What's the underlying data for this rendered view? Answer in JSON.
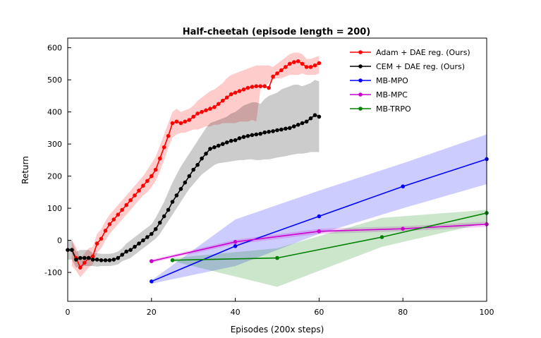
{
  "chart_data": {
    "type": "line",
    "title": "Half-cheetah (episode length = 200)",
    "xlabel": "Episodes (200x steps)",
    "ylabel": "Return",
    "xlim": [
      0,
      100
    ],
    "ylim": [
      -190,
      630
    ],
    "xticks": [
      "0",
      "20",
      "40",
      "60",
      "80",
      "100"
    ],
    "yticks": [
      "-100",
      "0",
      "100",
      "200",
      "300",
      "400",
      "500",
      "600"
    ],
    "grid": false,
    "legend_position": "top-right",
    "series": [
      {
        "name": "Adam + DAE reg. (Ours)",
        "color": "#ff0000",
        "marker": "circle",
        "x": [
          1,
          2,
          3,
          4,
          5,
          6,
          7,
          8,
          9,
          10,
          11,
          12,
          13,
          14,
          15,
          16,
          17,
          18,
          19,
          20,
          21,
          22,
          23,
          24,
          25,
          26,
          27,
          28,
          29,
          30,
          31,
          32,
          33,
          34,
          35,
          36,
          37,
          38,
          39,
          40,
          41,
          42,
          43,
          44,
          45,
          46,
          47,
          48,
          49,
          50,
          51,
          52,
          53,
          54,
          55,
          56,
          57,
          58,
          59,
          60
        ],
        "y": [
          -30,
          -55,
          -85,
          -70,
          -55,
          -50,
          -10,
          5,
          30,
          50,
          65,
          80,
          95,
          110,
          125,
          140,
          155,
          170,
          185,
          200,
          220,
          255,
          290,
          325,
          365,
          370,
          365,
          370,
          375,
          385,
          395,
          400,
          405,
          410,
          415,
          425,
          435,
          445,
          455,
          460,
          465,
          470,
          475,
          478,
          480,
          480,
          480,
          475,
          510,
          520,
          530,
          540,
          550,
          555,
          558,
          550,
          540,
          540,
          545,
          552
        ],
        "band_low": [
          -80,
          -95,
          -115,
          -100,
          -85,
          -75,
          -40,
          -25,
          0,
          20,
          35,
          50,
          65,
          80,
          95,
          110,
          125,
          140,
          150,
          165,
          185,
          215,
          250,
          290,
          320,
          330,
          335,
          335,
          340,
          345,
          345,
          350,
          355,
          355,
          360,
          360,
          365,
          365,
          365,
          365,
          370,
          370,
          370,
          375,
          370,
          470,
          480,
          490,
          500,
          505,
          505,
          510,
          515,
          515,
          515,
          520,
          515,
          515,
          515,
          520
        ],
        "band_high": [
          0,
          -20,
          -60,
          -40,
          -25,
          -20,
          20,
          35,
          60,
          80,
          95,
          110,
          125,
          140,
          155,
          170,
          185,
          200,
          220,
          240,
          260,
          295,
          330,
          365,
          400,
          410,
          400,
          405,
          410,
          420,
          435,
          445,
          455,
          465,
          470,
          480,
          490,
          505,
          515,
          520,
          525,
          530,
          535,
          540,
          545,
          545,
          545,
          545,
          540,
          550,
          560,
          570,
          580,
          585,
          585,
          580,
          565,
          565,
          570,
          575
        ]
      },
      {
        "name": "CEM + DAE reg. (Ours)",
        "color": "#000000",
        "marker": "circle",
        "x": [
          0,
          1,
          2,
          3,
          4,
          5,
          6,
          7,
          8,
          9,
          10,
          11,
          12,
          13,
          14,
          15,
          16,
          17,
          18,
          19,
          20,
          21,
          22,
          23,
          24,
          25,
          26,
          27,
          28,
          29,
          30,
          31,
          32,
          33,
          34,
          35,
          36,
          37,
          38,
          39,
          40,
          41,
          42,
          43,
          44,
          45,
          46,
          47,
          48,
          49,
          50,
          51,
          52,
          53,
          54,
          55,
          56,
          57,
          58,
          59,
          60
        ],
        "y": [
          -30,
          -30,
          -60,
          -55,
          -55,
          -55,
          -60,
          -60,
          -62,
          -62,
          -62,
          -60,
          -55,
          -45,
          -35,
          -30,
          -20,
          -10,
          0,
          10,
          20,
          35,
          55,
          75,
          95,
          120,
          140,
          160,
          180,
          200,
          220,
          235,
          255,
          270,
          285,
          290,
          295,
          300,
          305,
          310,
          312,
          318,
          322,
          325,
          328,
          330,
          332,
          336,
          338,
          340,
          343,
          345,
          348,
          350,
          355,
          360,
          365,
          370,
          380,
          390,
          385
        ],
        "band_low": [
          -60,
          -60,
          -85,
          -80,
          -80,
          -80,
          -80,
          -82,
          -80,
          -80,
          -80,
          -78,
          -75,
          -65,
          -60,
          -55,
          -45,
          -35,
          -25,
          -15,
          -5,
          5,
          20,
          40,
          60,
          80,
          100,
          120,
          140,
          160,
          175,
          190,
          205,
          215,
          225,
          235,
          240,
          242,
          244,
          246,
          248,
          250,
          250,
          252,
          252,
          250,
          250,
          252,
          252,
          255,
          258,
          260,
          262,
          265,
          268,
          270,
          270,
          272,
          275,
          275,
          275
        ],
        "band_high": [
          0,
          0,
          -35,
          -30,
          -30,
          -30,
          -40,
          -40,
          -42,
          -42,
          -42,
          -40,
          -35,
          -25,
          -10,
          0,
          10,
          20,
          30,
          40,
          50,
          70,
          95,
          120,
          150,
          180,
          205,
          230,
          250,
          270,
          290,
          310,
          330,
          350,
          365,
          370,
          375,
          380,
          385,
          395,
          400,
          410,
          420,
          425,
          430,
          430,
          425,
          440,
          450,
          455,
          460,
          470,
          475,
          480,
          485,
          485,
          480,
          485,
          490,
          500,
          495
        ]
      },
      {
        "name": "MB-MPO",
        "color": "#0000ff",
        "marker": "circle",
        "x": [
          20,
          40,
          60,
          80,
          100
        ],
        "y": [
          -128,
          -18,
          75,
          168,
          253
        ],
        "band_low": [
          -135,
          -80,
          20,
          100,
          175
        ],
        "band_high": [
          -125,
          65,
          155,
          240,
          330
        ]
      },
      {
        "name": "MB-MPC",
        "color": "#cc00cc",
        "marker": "circle",
        "x": [
          20,
          40,
          60,
          80,
          100
        ],
        "y": [
          -65,
          -5,
          28,
          36,
          50
        ],
        "band_low": [
          -70,
          -12,
          20,
          28,
          42
        ],
        "band_high": [
          -60,
          2,
          36,
          44,
          58
        ]
      },
      {
        "name": "MB-TRPO",
        "color": "#008000",
        "marker": "circle",
        "x": [
          25,
          50,
          75,
          100
        ],
        "y": [
          -62,
          -55,
          10,
          85
        ],
        "band_low": [
          -65,
          -145,
          -20,
          55
        ],
        "band_high": [
          -55,
          -25,
          70,
          95
        ]
      }
    ]
  }
}
